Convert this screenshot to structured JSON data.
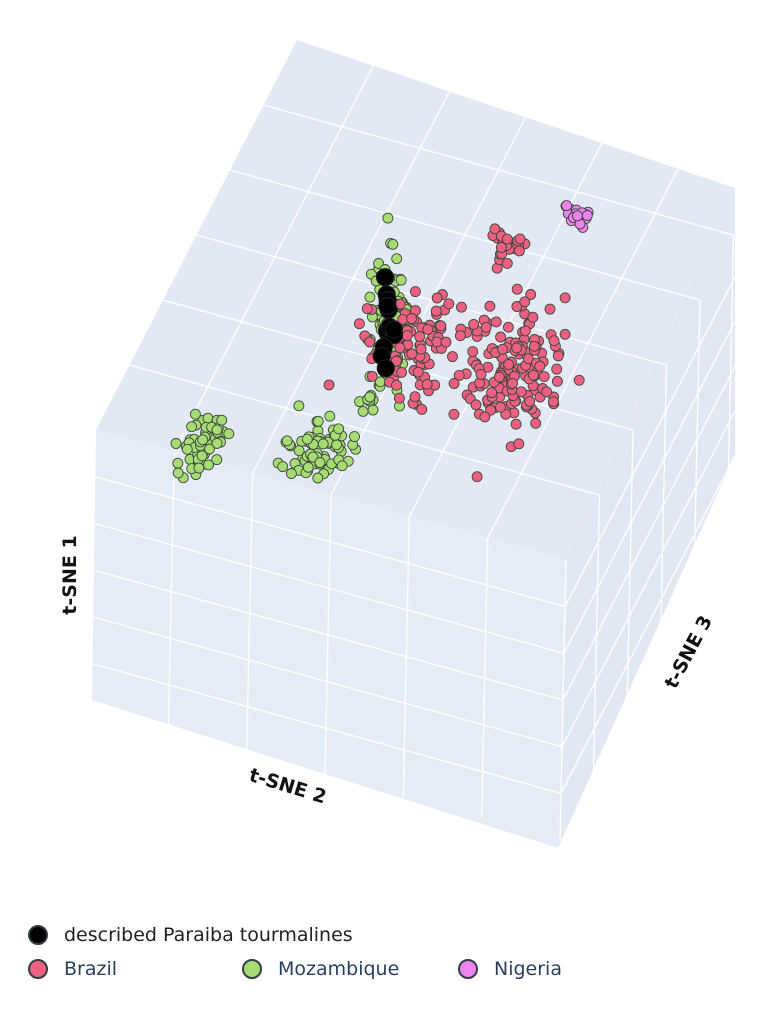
{
  "chart_data": {
    "type": "scatter",
    "projection": "3d",
    "axes": {
      "x": {
        "title": "t-SNE 2",
        "range": [
          -60,
          60
        ]
      },
      "y": {
        "title": "t-SNE 3",
        "range": [
          -60,
          60
        ]
      },
      "z": {
        "title": "t-SNE 1",
        "range": [
          -60,
          60
        ]
      }
    },
    "grid": true,
    "background": "#e5ecf6",
    "legend_position": "bottom-left",
    "series": [
      {
        "name": "described Paraiba tourmalines",
        "color": "#000000",
        "clusters": [
          {
            "center": [
              -12,
              2,
              42
            ],
            "spread": [
              1.2,
              1.2,
              13
            ],
            "count": 12
          }
        ]
      },
      {
        "name": "Brazil",
        "color": "#ef5f82",
        "clusters": [
          {
            "center": [
              5,
              35,
              38
            ],
            "spread": [
              2,
              2,
              3
            ],
            "count": 25
          },
          {
            "center": [
              10,
              28,
              -5
            ],
            "spread": [
              6,
              6,
              10
            ],
            "count": 160
          },
          {
            "center": [
              -5,
              5,
              14
            ],
            "spread": [
              3,
              3,
              2
            ],
            "count": 10
          },
          {
            "center": [
              -20,
              35,
              -15
            ],
            "spread": [
              6,
              6,
              5
            ],
            "count": 90
          }
        ]
      },
      {
        "name": "Mozambique",
        "color": "#a7dc74",
        "clusters": [
          {
            "center": [
              -12,
              3,
              40
            ],
            "spread": [
              2,
              2,
              14
            ],
            "count": 110
          },
          {
            "center": [
              -45,
              -30,
              20
            ],
            "spread": [
              3,
              4,
              4
            ],
            "count": 60
          },
          {
            "center": [
              -18,
              8,
              -3
            ],
            "spread": [
              1,
              1,
              1.5
            ],
            "count": 8
          },
          {
            "center": [
              -28,
              0,
              -18
            ],
            "spread": [
              4,
              4,
              4
            ],
            "count": 70
          }
        ]
      },
      {
        "name": "Nigeria",
        "color": "#f083f2",
        "clusters": [
          {
            "center": [
              20,
              40,
              50
            ],
            "spread": [
              1.5,
              1.5,
              1.5
            ],
            "count": 18
          }
        ]
      }
    ]
  },
  "legend": {
    "first_row": [
      {
        "label": "described Paraiba tourmalines",
        "color": "#000000"
      }
    ],
    "second_row": [
      {
        "label": "Brazil",
        "color": "#ef5f82"
      },
      {
        "label": "Mozambique",
        "color": "#a7dc74"
      },
      {
        "label": "Nigeria",
        "color": "#f083f2"
      }
    ]
  }
}
